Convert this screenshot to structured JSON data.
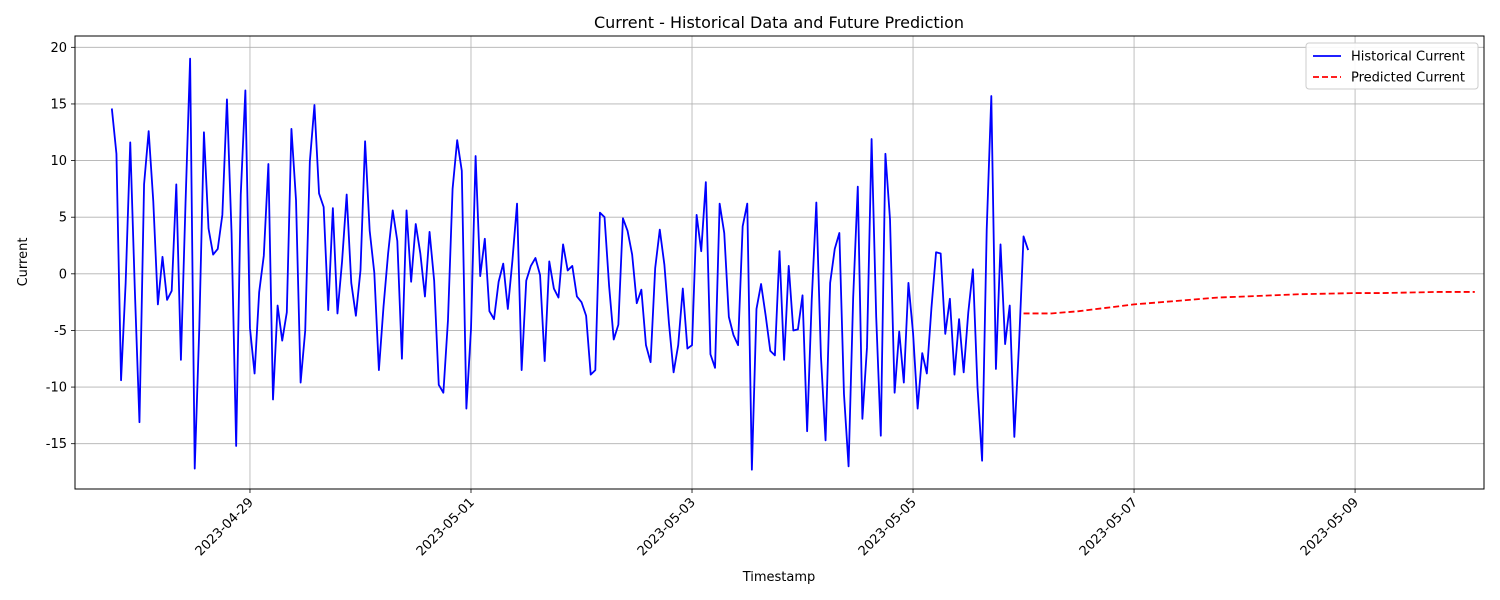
{
  "chart_data": {
    "type": "line",
    "title": "Current - Historical Data and Future Prediction",
    "xlabel": "Timestamp",
    "ylabel": "Current",
    "ylim": [
      -19,
      21
    ],
    "yticks": [
      -15,
      -10,
      -5,
      0,
      5,
      10,
      15,
      20
    ],
    "xticks": [
      "2023-04-29",
      "2023-05-01",
      "2023-05-03",
      "2023-05-05",
      "2023-05-07",
      "2023-05-09"
    ],
    "xlim": [
      "2023-04-27T10:00",
      "2023-05-10T04:00"
    ],
    "grid": true,
    "legend_position": "top-right",
    "series": [
      {
        "name": "Historical Current",
        "color": "#0000ff",
        "style": "solid",
        "start": "2023-04-27T18:00",
        "step_hours": 1,
        "values": [
          14.6,
          10.6,
          -9.4,
          -0.8,
          11.6,
          -1.5,
          -13.1,
          7.9,
          12.6,
          6.4,
          -2.7,
          1.5,
          -2.3,
          -1.5,
          7.9,
          -7.6,
          6.2,
          19.0,
          -17.2,
          -4.7,
          12.5,
          4.0,
          1.7,
          2.2,
          5.2,
          15.4,
          3.6,
          -15.2,
          7.0,
          16.2,
          -4.8,
          -8.8,
          -1.6,
          1.6,
          9.7,
          -11.1,
          -2.8,
          -5.9,
          -3.4,
          12.8,
          6.5,
          -9.6,
          -5.0,
          9.9,
          14.9,
          7.1,
          5.9,
          -3.2,
          5.8,
          -3.5,
          1.1,
          7.0,
          -0.8,
          -3.7,
          0.3,
          11.7,
          3.8,
          0.1,
          -8.5,
          -2.9,
          1.8,
          5.6,
          2.9,
          -7.5,
          5.6,
          -0.7,
          4.4,
          1.8,
          -2.0,
          3.7,
          -0.6,
          -9.8,
          -10.5,
          -4.1,
          7.5,
          11.8,
          9.1,
          -11.9,
          -4.9,
          10.4,
          -0.2,
          3.1,
          -3.3,
          -4.0,
          -0.7,
          0.9,
          -3.1,
          1.2,
          6.2,
          -8.5,
          -0.6,
          0.7,
          1.4,
          -0.1,
          -7.7,
          1.1,
          -1.3,
          -2.1,
          2.6,
          0.3,
          0.7,
          -2.0,
          -2.5,
          -3.7,
          -8.9,
          -8.5,
          5.4,
          5.0,
          -1.1,
          -5.8,
          -4.5,
          4.9,
          3.8,
          1.7,
          -2.6,
          -1.4,
          -6.3,
          -7.8,
          0.5,
          3.9,
          0.8,
          -4.4,
          -8.7,
          -6.3,
          -1.3,
          -6.6,
          -6.3,
          5.2,
          2.0,
          8.1,
          -7.1,
          -8.3,
          6.2,
          3.6,
          -3.8,
          -5.4,
          -6.3,
          4.2,
          6.2,
          -17.3,
          -3.1,
          -0.9,
          -3.7,
          -6.8,
          -7.2,
          2.0,
          -7.6,
          0.7,
          -5.0,
          -4.9,
          -1.9,
          -13.9,
          -2.3,
          6.3,
          -7.3,
          -14.7,
          -0.8,
          2.2,
          3.6,
          -10.6,
          -17.0,
          -2.1,
          7.7,
          -12.8,
          -6.5,
          11.9,
          -3.8,
          -14.3,
          10.6,
          4.8,
          -10.5,
          -5.1,
          -9.6,
          -0.8,
          -5.2,
          -11.9,
          -7.0,
          -8.8,
          -3.0,
          1.9,
          1.8,
          -5.3,
          -2.2,
          -8.9,
          -4.0,
          -8.7,
          -3.4,
          0.4,
          -10.0,
          -16.5,
          3.9,
          15.7,
          -8.4,
          2.6,
          -6.2,
          -2.8,
          -14.4,
          -6.4,
          3.3,
          2.1
        ]
      },
      {
        "name": "Predicted Current",
        "color": "#ff0000",
        "style": "dashed",
        "points": [
          {
            "x": "2023-05-06T00:00",
            "y": -3.5
          },
          {
            "x": "2023-05-06T06:00",
            "y": -3.5
          },
          {
            "x": "2023-05-06T12:00",
            "y": -3.3
          },
          {
            "x": "2023-05-06T18:00",
            "y": -3.0
          },
          {
            "x": "2023-05-07T00:00",
            "y": -2.7
          },
          {
            "x": "2023-05-07T06:00",
            "y": -2.5
          },
          {
            "x": "2023-05-07T12:00",
            "y": -2.3
          },
          {
            "x": "2023-05-07T18:00",
            "y": -2.1
          },
          {
            "x": "2023-05-08T00:00",
            "y": -2.0
          },
          {
            "x": "2023-05-08T06:00",
            "y": -1.9
          },
          {
            "x": "2023-05-08T12:00",
            "y": -1.8
          },
          {
            "x": "2023-05-08T18:00",
            "y": -1.75
          },
          {
            "x": "2023-05-09T00:00",
            "y": -1.7
          },
          {
            "x": "2023-05-09T06:00",
            "y": -1.7
          },
          {
            "x": "2023-05-09T12:00",
            "y": -1.65
          },
          {
            "x": "2023-05-09T18:00",
            "y": -1.6
          },
          {
            "x": "2023-05-10T00:00",
            "y": -1.6
          },
          {
            "x": "2023-05-10T02:00",
            "y": -1.6
          }
        ]
      }
    ]
  }
}
